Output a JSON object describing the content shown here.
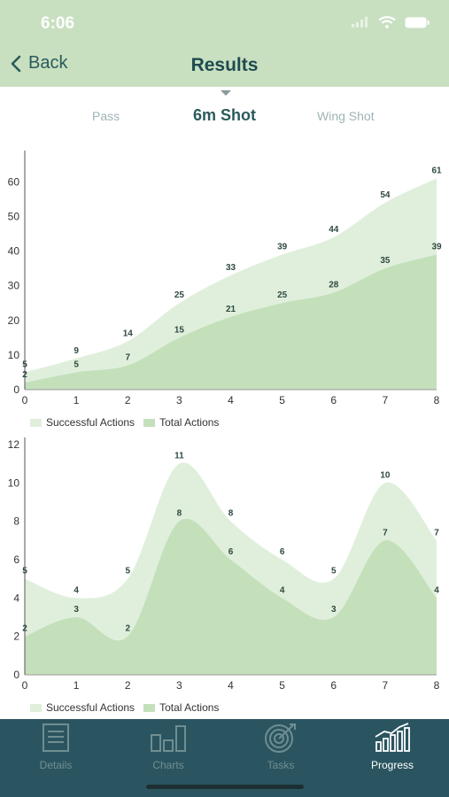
{
  "status": {
    "time": "6:06"
  },
  "nav": {
    "back_label": "Back",
    "title": "Results"
  },
  "tabs": [
    "Pass",
    "6m Shot",
    "Wing Shot"
  ],
  "colors": {
    "header": "#c8e0c0",
    "light_area": "#e0efdc",
    "dark_area": "#c3e0bb",
    "tabbar": "#2a5560"
  },
  "chart_data": [
    {
      "type": "area",
      "x": [
        0,
        1,
        2,
        3,
        4,
        5,
        6,
        7,
        8
      ],
      "yticks": [
        0,
        10,
        20,
        30,
        40,
        50,
        60
      ],
      "ylim": [
        0,
        67
      ],
      "series": [
        {
          "name": "Successful Actions",
          "values": [
            5,
            9,
            14,
            25,
            33,
            39,
            44,
            54,
            61
          ]
        },
        {
          "name": "Total Actions",
          "values": [
            2,
            5,
            7,
            15,
            21,
            25,
            28,
            35,
            39
          ]
        }
      ],
      "legend": [
        "Successful Actions",
        "Total Actions"
      ],
      "legend_position": "bottom-left"
    },
    {
      "type": "area",
      "x": [
        0,
        1,
        2,
        3,
        4,
        5,
        6,
        7,
        8
      ],
      "yticks": [
        0,
        2,
        4,
        6,
        8,
        10,
        12
      ],
      "ylim": [
        0,
        12
      ],
      "series": [
        {
          "name": "Successful Actions",
          "values": [
            5,
            4,
            5,
            11,
            8,
            6,
            5,
            10,
            7
          ]
        },
        {
          "name": "Total Actions",
          "values": [
            2,
            3,
            2,
            8,
            6,
            4,
            3,
            7,
            4
          ]
        }
      ],
      "legend": [
        "Successful Actions",
        "Total Actions"
      ],
      "legend_position": "bottom-left"
    }
  ],
  "tabbar": [
    {
      "label": "Details",
      "icon": "details-icon",
      "active": false
    },
    {
      "label": "Charts",
      "icon": "charts-icon",
      "active": false
    },
    {
      "label": "Tasks",
      "icon": "target-icon",
      "active": false
    },
    {
      "label": "Progress",
      "icon": "progress-icon",
      "active": true
    }
  ]
}
